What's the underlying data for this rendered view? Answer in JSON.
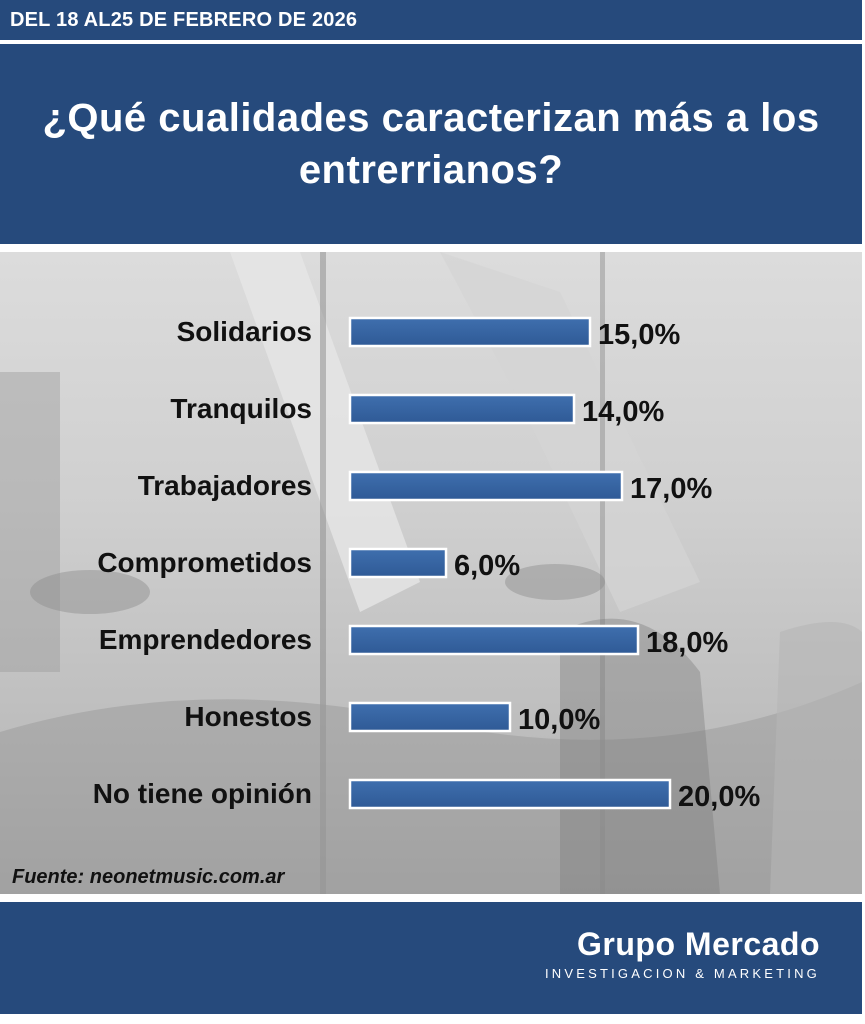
{
  "header": {
    "date_range": "DEL 18 AL25 DE FEBRERO DE 2026",
    "title": "¿Qué cualidades caracterizan más a los entrerrianos?"
  },
  "source": "Fuente: neonetmusic.com.ar",
  "brand": {
    "name": "Grupo Mercado",
    "tagline": "INVESTIGACION & MARKETING"
  },
  "colors": {
    "header_bg": "#264a7c",
    "bar_fill": "#2f5a96",
    "bar_border": "#ffffff"
  },
  "chart_data": {
    "type": "bar",
    "orientation": "horizontal",
    "title": "¿Qué cualidades caracterizan más a los entrerrianos?",
    "categories": [
      "Solidarios",
      "Tranquilos",
      "Trabajadores",
      "Comprometidos",
      "Emprendedores",
      "Honestos",
      "No tiene opinión"
    ],
    "values": [
      15.0,
      14.0,
      17.0,
      6.0,
      18.0,
      10.0,
      20.0
    ],
    "value_labels": [
      "15,0%",
      "14,0%",
      "17,0%",
      "6,0%",
      "18,0%",
      "10,0%",
      "20,0%"
    ],
    "unit": "%",
    "xlim": [
      0,
      20
    ],
    "grid": false,
    "legend": "none"
  }
}
